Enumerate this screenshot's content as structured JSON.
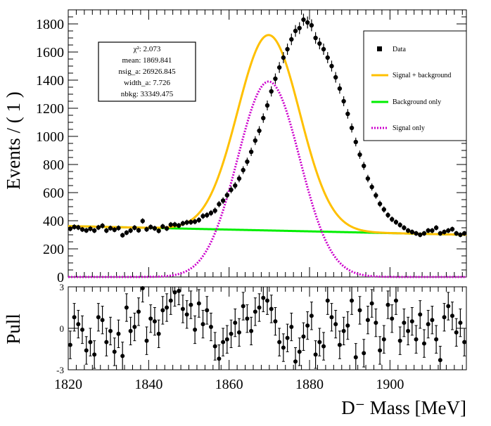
{
  "chart_data": [
    {
      "type": "scatter",
      "panel": "fit",
      "ylabel": "Events / ( 1 )",
      "xlim": [
        1820,
        1919
      ],
      "ylim": [
        0,
        1900
      ],
      "yticks": [
        0,
        200,
        400,
        600,
        800,
        1000,
        1200,
        1400,
        1600,
        1800
      ],
      "grid": false,
      "legend_position": "top-right",
      "stats": {
        "chi2": "χ²: 2.073",
        "mean": "mean: 1869.841",
        "nsig": "nsig_a: 26926.845",
        "width": "width_a: 7.726",
        "nbkg": "nbkg: 33349.475"
      },
      "legend": [
        {
          "label": "Data",
          "style": "marker",
          "color": "#000000"
        },
        {
          "label": "Signal + background",
          "style": "solid",
          "color": "#ffc000"
        },
        {
          "label": "Background only",
          "style": "solid",
          "color": "#00ee00"
        },
        {
          "label": "Signal only",
          "style": "dotted",
          "color": "#cc00cc"
        }
      ],
      "model": {
        "mean": 1869.841,
        "width": 7.726,
        "signal_peak": 1390,
        "background_start": 362,
        "background_end": 300
      },
      "series": [
        {
          "name": "Data",
          "x": [
            1820.5,
            1821.5,
            1822.5,
            1823.5,
            1824.5,
            1825.5,
            1826.5,
            1827.5,
            1828.5,
            1829.5,
            1830.5,
            1831.5,
            1832.5,
            1833.5,
            1834.5,
            1835.5,
            1836.5,
            1837.5,
            1838.5,
            1839.5,
            1840.5,
            1841.5,
            1842.5,
            1843.5,
            1844.5,
            1845.5,
            1846.5,
            1847.5,
            1848.5,
            1849.5,
            1850.5,
            1851.5,
            1852.5,
            1853.5,
            1854.5,
            1855.5,
            1856.5,
            1857.5,
            1858.5,
            1859.5,
            1860.5,
            1861.5,
            1862.5,
            1863.5,
            1864.5,
            1865.5,
            1866.5,
            1867.5,
            1868.5,
            1869.5,
            1870.5,
            1871.5,
            1872.5,
            1873.5,
            1874.5,
            1875.5,
            1876.5,
            1877.5,
            1878.5,
            1879.5,
            1880.5,
            1881.5,
            1882.5,
            1883.5,
            1884.5,
            1885.5,
            1886.5,
            1887.5,
            1888.5,
            1889.5,
            1890.5,
            1891.5,
            1892.5,
            1893.5,
            1894.5,
            1895.5,
            1896.5,
            1897.5,
            1898.5,
            1899.5,
            1900.5,
            1901.5,
            1902.5,
            1903.5,
            1904.5,
            1905.5,
            1906.5,
            1907.5,
            1908.5,
            1909.5,
            1910.5,
            1911.5,
            1912.5,
            1913.5,
            1914.5,
            1915.5,
            1916.5,
            1917.5,
            1918.5
          ],
          "y": [
            343,
            356,
            352,
            338,
            331,
            343,
            330,
            352,
            364,
            330,
            347,
            336,
            348,
            297,
            315,
            330,
            350,
            332,
            398,
            339,
            355,
            346,
            328,
            359,
            345,
            372,
            373,
            366,
            381,
            388,
            390,
            394,
            405,
            433,
            440,
            455,
            472,
            518,
            543,
            582,
            620,
            650,
            700,
            760,
            820,
            890,
            970,
            1040,
            1130,
            1220,
            1320,
            1410,
            1490,
            1560,
            1620,
            1690,
            1750,
            1770,
            1830,
            1810,
            1790,
            1700,
            1660,
            1620,
            1560,
            1500,
            1420,
            1340,
            1250,
            1160,
            1060,
            960,
            870,
            790,
            700,
            640,
            580,
            520,
            480,
            440,
            410,
            390,
            370,
            350,
            330,
            320,
            310,
            300,
            310,
            330,
            330,
            350,
            310,
            320,
            330,
            340,
            310,
            300,
            310
          ],
          "yerr_note": "Poisson"
        }
      ]
    },
    {
      "type": "scatter",
      "panel": "pull",
      "ylabel": "Pull",
      "xlabel": "D⁻ Mass [MeV]",
      "xlim": [
        1820,
        1919
      ],
      "ylim": [
        -3,
        3
      ],
      "xticks": [
        1820,
        1840,
        1860,
        1880,
        1900
      ],
      "yticks": [
        -3,
        0,
        3
      ],
      "series": [
        {
          "name": "Pull",
          "x": [
            1820.5,
            1821.5,
            1822.5,
            1823.5,
            1824.5,
            1825.5,
            1826.5,
            1827.5,
            1828.5,
            1829.5,
            1830.5,
            1831.5,
            1832.5,
            1833.5,
            1834.5,
            1835.5,
            1836.5,
            1837.5,
            1838.5,
            1839.5,
            1840.5,
            1841.5,
            1842.5,
            1843.5,
            1844.5,
            1845.5,
            1846.5,
            1847.5,
            1848.5,
            1849.5,
            1850.5,
            1851.5,
            1852.5,
            1853.5,
            1854.5,
            1855.5,
            1856.5,
            1857.5,
            1858.5,
            1859.5,
            1860.5,
            1861.5,
            1862.5,
            1863.5,
            1864.5,
            1865.5,
            1866.5,
            1867.5,
            1868.5,
            1869.5,
            1870.5,
            1871.5,
            1872.5,
            1873.5,
            1874.5,
            1875.5,
            1876.5,
            1877.5,
            1878.5,
            1879.5,
            1880.5,
            1881.5,
            1882.5,
            1883.5,
            1884.5,
            1885.5,
            1886.5,
            1887.5,
            1888.5,
            1889.5,
            1890.5,
            1891.5,
            1892.5,
            1893.5,
            1894.5,
            1895.5,
            1896.5,
            1897.5,
            1898.5,
            1899.5,
            1900.5,
            1901.5,
            1902.5,
            1903.5,
            1904.5,
            1905.5,
            1906.5,
            1907.5,
            1908.5,
            1909.5,
            1910.5,
            1911.5,
            1912.5,
            1913.5,
            1914.5,
            1915.5,
            1916.5,
            1917.5,
            1918.5
          ],
          "y": [
            -1.2,
            0.8,
            0.3,
            -0.1,
            -1.6,
            -1.0,
            -1.9,
            0.8,
            0.6,
            -1.0,
            -0.2,
            -1.7,
            -0.4,
            -2.0,
            1.5,
            -0.2,
            0.1,
            1.2,
            2.9,
            -0.9,
            0.7,
            0.5,
            -0.4,
            1.3,
            1.5,
            2.0,
            2.6,
            2.7,
            1.4,
            1.0,
            1.7,
            -0.1,
            1.8,
            0.3,
            1.3,
            0.1,
            -1.3,
            -2.2,
            -1.0,
            -0.8,
            -0.4,
            0.4,
            -0.3,
            1.6,
            0.7,
            -0.2,
            1.2,
            1.5,
            2.2,
            2.0,
            1.4,
            0.5,
            -1.0,
            -1.4,
            -0.7,
            0.1,
            -2.4,
            -1.7,
            -0.6,
            0.2,
            0.9,
            -1.9,
            -1.0,
            -1.3,
            2.0,
            0.8,
            0.3,
            -1.2,
            -0.2,
            0.2,
            2.0,
            -2.1,
            1.3,
            -1.8,
            0.6,
            1.8,
            0.4,
            -1.6,
            -0.8,
            1.7,
            0.7,
            2.0,
            -0.9,
            0.4,
            -0.2,
            0.5,
            -0.8,
            1.0,
            -1.1,
            0.3,
            0.6,
            -0.8,
            -2.3,
            0.8,
            1.6,
            0.9,
            -0.3,
            0.4,
            -1.0
          ],
          "yerr": 1
        }
      ]
    }
  ]
}
